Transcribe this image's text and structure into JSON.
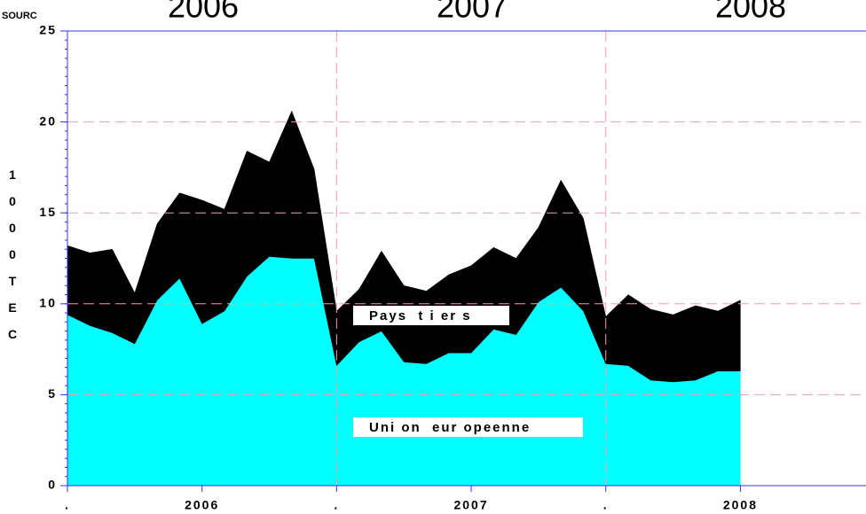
{
  "chart_data": {
    "type": "stacked_area",
    "source": "SOURC",
    "top_labels": [
      "2006",
      "2007",
      "2008"
    ],
    "ylabel": "1 0 0 0 T E C",
    "x": [
      0,
      1,
      2,
      3,
      4,
      5,
      6,
      7,
      8,
      9,
      10,
      11,
      12,
      13,
      14,
      15,
      16,
      17,
      18,
      19,
      20,
      21,
      22,
      23,
      24,
      25,
      26,
      27,
      28,
      29,
      30
    ],
    "series": [
      {
        "name": "Uni on  eur opeenne",
        "color": "#00ffff",
        "values": [
          9.4,
          8.8,
          8.4,
          7.8,
          10.2,
          11.4,
          8.9,
          9.6,
          11.5,
          12.6,
          12.5,
          12.5,
          6.6,
          7.9,
          8.5,
          6.8,
          6.7,
          7.3,
          7.3,
          8.6,
          8.3,
          10.1,
          10.9,
          9.6,
          6.7,
          6.6,
          5.8,
          5.7,
          5.8,
          6.3,
          6.3
        ]
      },
      {
        "name": "Pays  t i er s",
        "color": "#000000",
        "values": [
          3.8,
          4.0,
          4.6,
          2.8,
          4.2,
          4.7,
          6.8,
          5.6,
          6.9,
          5.2,
          8.1,
          4.9,
          3.0,
          2.9,
          4.4,
          4.2,
          4.0,
          4.3,
          4.8,
          4.5,
          4.2,
          4.1,
          5.9,
          5.1,
          2.6,
          3.9,
          3.9,
          3.7,
          4.1,
          3.3,
          3.9
        ]
      }
    ],
    "xlim": [
      0,
      35.6
    ],
    "xticks": [
      {
        "value": 0,
        "label": "."
      },
      {
        "value": 6,
        "label": "2006"
      },
      {
        "value": 12,
        "label": "."
      },
      {
        "value": 18,
        "label": "2007"
      },
      {
        "value": 24,
        "label": "."
      },
      {
        "value": 30,
        "label": "2008"
      }
    ],
    "ylim": [
      0,
      25
    ],
    "yticks": [
      0,
      5,
      10,
      15,
      20,
      25
    ],
    "grid": true
  }
}
